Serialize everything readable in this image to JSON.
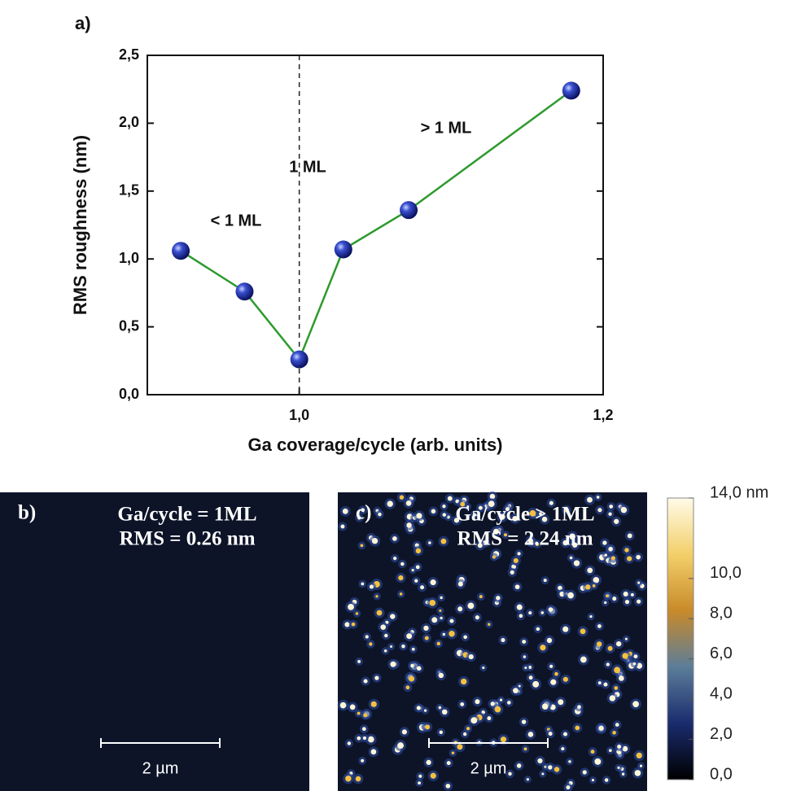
{
  "chart_data": [
    {
      "type": "line",
      "label": "a)",
      "xlabel": "Ga coverage/cycle (arb. units)",
      "ylabel": "RMS roughness (nm)",
      "x": [
        0.922,
        0.964,
        1.0,
        1.029,
        1.072,
        1.179
      ],
      "values": [
        1.06,
        0.76,
        0.26,
        1.07,
        1.36,
        2.24
      ],
      "color": "#2e9a2e",
      "marker_color": "#1a2a9a",
      "xlim": [
        0.9,
        1.2
      ],
      "xticks": [
        {
          "value": 1.0,
          "label": "1,0"
        },
        {
          "value": 1.2,
          "label": "1,2"
        }
      ],
      "ylim": [
        0,
        2.5
      ],
      "yticks": [
        {
          "value": 0,
          "label": "0,0"
        },
        {
          "value": 0.5,
          "label": "0,5"
        },
        {
          "value": 1.0,
          "label": "1,0"
        },
        {
          "value": 1.5,
          "label": "1,5"
        },
        {
          "value": 2.0,
          "label": "2,0"
        },
        {
          "value": 2.5,
          "label": "2,5"
        }
      ],
      "annotations": [
        "< 1 ML",
        "1 ML",
        "> 1 ML"
      ]
    },
    {
      "type": "colorbar",
      "ylim": [
        0,
        14
      ],
      "yticks": [
        {
          "value": 0,
          "label": "0,0"
        },
        {
          "value": 2,
          "label": "2,0"
        },
        {
          "value": 4,
          "label": "4,0"
        },
        {
          "value": 6,
          "label": "6,0"
        },
        {
          "value": 8,
          "label": "8,0"
        },
        {
          "value": 10,
          "label": "10,0"
        },
        {
          "value": 14,
          "label": "14,0 nm"
        }
      ]
    }
  ],
  "panels": [
    {
      "label": "b)",
      "lines": [
        "Ga/cycle = 1ML",
        "RMS = 0.26 nm"
      ],
      "scale_bar": "2 µm"
    },
    {
      "label": "c)",
      "lines": [
        "Ga/cycle > 1ML",
        "RMS = 2.24 nm"
      ],
      "scale_bar": "2 µm"
    }
  ]
}
